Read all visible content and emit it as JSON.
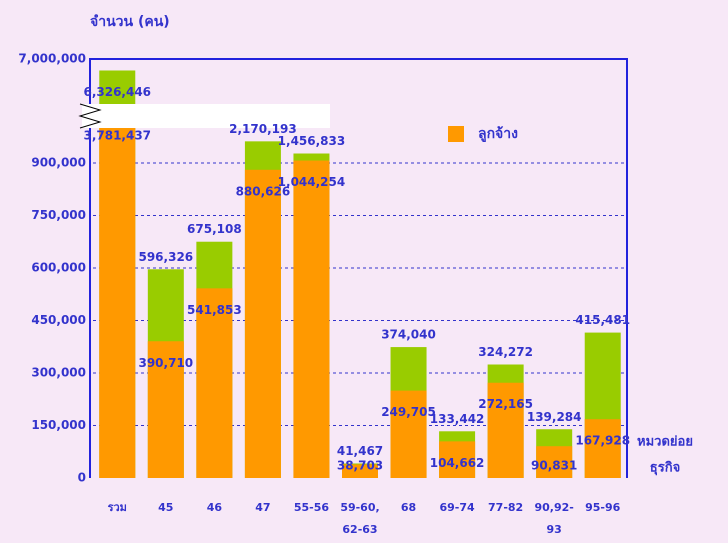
{
  "chart_data": {
    "type": "bar",
    "y_label": "จำนวน (คน)",
    "x_label": [
      "หมวดย่อย",
      "ธุรกิจ"
    ],
    "categories": [
      "รวม",
      "45",
      "46",
      "47",
      "55-56",
      "59-60, 62-63",
      "68",
      "69-74",
      "77-82",
      "90,92-93",
      "95-96"
    ],
    "series": [
      {
        "color": "#99cc00",
        "values": [
          6326446,
          596326,
          675108,
          2170193,
          1456833,
          41467,
          374040,
          133442,
          324272,
          139284,
          415481
        ],
        "value_labels": [
          "6,326,446",
          "596,326",
          "675,108",
          "2,170,193",
          "1,456,833",
          "41,467",
          "374,040",
          "133,442",
          "324,272",
          "139,284",
          "415,481"
        ]
      },
      {
        "name": "ลูกจ้าง",
        "color": "#ff9900",
        "values": [
          3781437,
          390710,
          541853,
          880626,
          1044254,
          38703,
          249705,
          104662,
          272165,
          90831,
          167928
        ],
        "value_labels": [
          "3,781,437",
          "390,710",
          "541,853",
          "880,626",
          "1,044,254",
          "38,703",
          "249,705",
          "104,662",
          "272,165",
          "90,831",
          "167,928"
        ]
      }
    ],
    "ylim": [
      0,
      7000000
    ],
    "yticks": [
      {
        "value": 0,
        "label": "0"
      },
      {
        "value": 150000,
        "label": "150,000"
      },
      {
        "value": 300000,
        "label": "300,000"
      },
      {
        "value": 450000,
        "label": "450,000"
      },
      {
        "value": 600000,
        "label": "600,000"
      },
      {
        "value": 750000,
        "label": "750,000"
      },
      {
        "value": 900000,
        "label": "900,000"
      },
      {
        "value": 7000000,
        "label": "7,000,000"
      }
    ],
    "axis_break": true,
    "grid": true,
    "bar_mode": "overlay"
  }
}
